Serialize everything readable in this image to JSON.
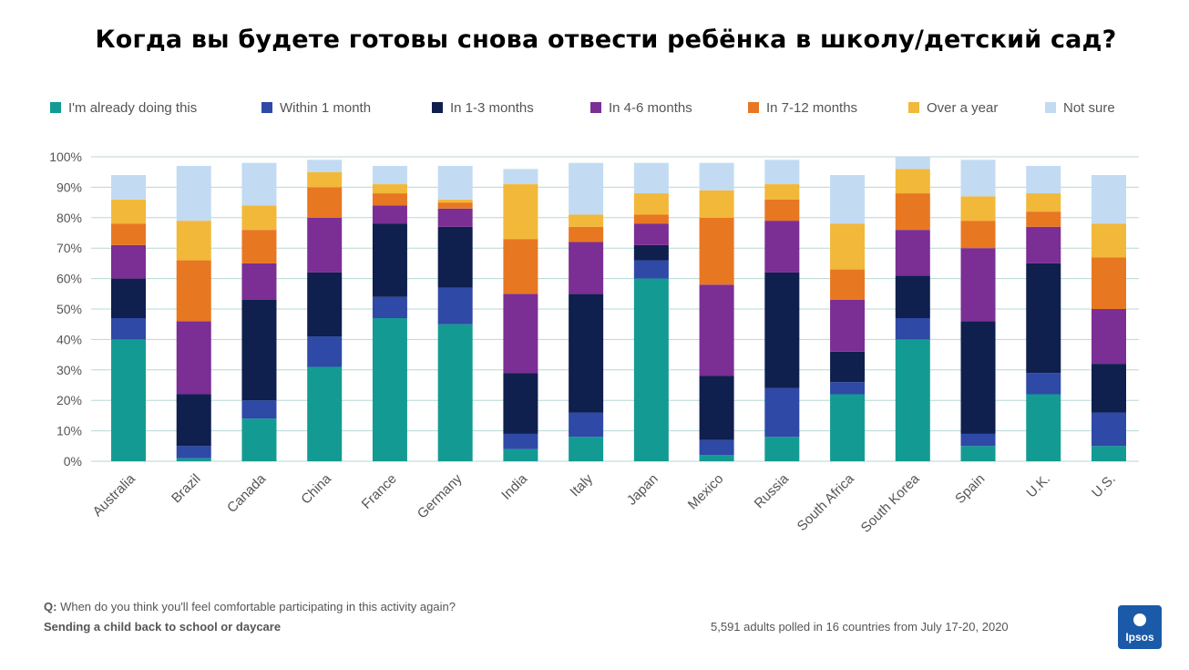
{
  "title": "Когда вы будете готовы снова отвести ребёнка в школу/детский сад?",
  "footer": {
    "q_prefix": "Q:",
    "question": "When do you think you'll feel comfortable participating in this activity again?",
    "subtitle": "Sending a child back to school or daycare",
    "note": "5,591 adults polled in 16 countries from July 17-20, 2020",
    "logo_text": "Ipsos"
  },
  "colors": {
    "I'm already doing this": "#139b93",
    "Within 1 month": "#2e49a6",
    "In 1-3 months": "#0f1f4e",
    "In 4-6 months": "#7b2e94",
    "In 7-12 months": "#e87722",
    "Over a year": "#f2b83a",
    "Not sure": "#c2dbf2",
    "gridline": "#b6d8d6"
  },
  "chart_data": {
    "type": "bar",
    "stacked": true,
    "categories": [
      "Australia",
      "Brazil",
      "Canada",
      "China",
      "France",
      "Germany",
      "India",
      "Italy",
      "Japan",
      "Mexico",
      "Russia",
      "South Africa",
      "South Korea",
      "Spain",
      "U.K.",
      "U.S."
    ],
    "series": [
      {
        "name": "I'm already doing this",
        "values": [
          40,
          1,
          14,
          31,
          47,
          45,
          4,
          8,
          60,
          2,
          8,
          22,
          40,
          5,
          22,
          5
        ]
      },
      {
        "name": "Within 1 month",
        "values": [
          7,
          4,
          6,
          10,
          7,
          12,
          5,
          8,
          6,
          5,
          16,
          4,
          7,
          4,
          7,
          11
        ]
      },
      {
        "name": "In 1-3 months",
        "values": [
          13,
          17,
          33,
          21,
          24,
          20,
          20,
          39,
          5,
          21,
          38,
          10,
          14,
          37,
          36,
          16
        ]
      },
      {
        "name": "In 4-6 months",
        "values": [
          11,
          24,
          12,
          18,
          6,
          6,
          26,
          17,
          7,
          30,
          17,
          17,
          15,
          24,
          12,
          18
        ]
      },
      {
        "name": "In 7-12 months",
        "values": [
          7,
          20,
          11,
          10,
          4,
          2,
          18,
          5,
          3,
          22,
          7,
          10,
          12,
          9,
          5,
          17
        ]
      },
      {
        "name": "Over a year",
        "values": [
          8,
          13,
          8,
          5,
          3,
          1,
          18,
          4,
          7,
          9,
          5,
          15,
          8,
          8,
          6,
          11
        ]
      },
      {
        "name": "Not sure",
        "values": [
          8,
          18,
          14,
          4,
          6,
          11,
          5,
          17,
          10,
          9,
          8,
          16,
          4,
          12,
          9,
          16
        ]
      }
    ],
    "ylim": [
      0,
      100
    ],
    "yticks": [
      "0%",
      "10%",
      "20%",
      "30%",
      "40%",
      "50%",
      "60%",
      "70%",
      "80%",
      "90%",
      "100%"
    ],
    "grid": true,
    "legend_position": "top"
  }
}
